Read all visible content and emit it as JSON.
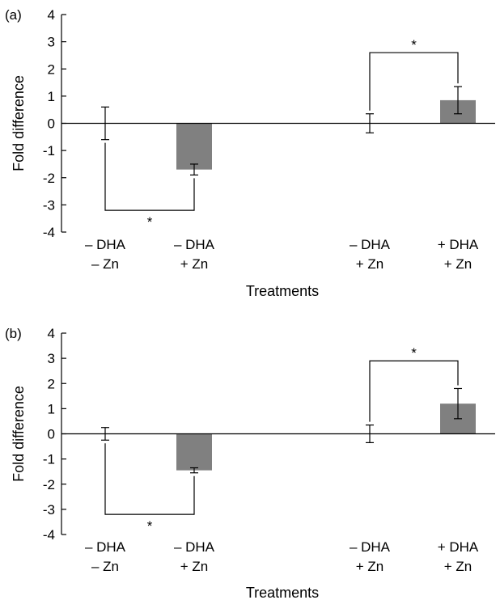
{
  "chart_data": [
    {
      "type": "bar",
      "panel_label": "(a)",
      "xlabel": "Treatments",
      "ylabel": "Fold difference",
      "ylim": [
        -4,
        4
      ],
      "yticks": [
        "4",
        "3",
        "2",
        "1",
        "0",
        "-1",
        "-2",
        "-3",
        "-4"
      ],
      "categories": [
        {
          "line1": "– DHA",
          "line2": "– Zn"
        },
        {
          "line1": "– DHA",
          "line2": "+ Zn"
        },
        {
          "line1": "– DHA",
          "line2": "+ Zn"
        },
        {
          "line1": "+ DHA",
          "line2": "+ Zn"
        }
      ],
      "values": [
        0,
        -1.7,
        0,
        0.85
      ],
      "errors": [
        0.6,
        0.2,
        0.35,
        0.5
      ],
      "bar_color": "#808080",
      "significance": [
        {
          "pair": [
            0,
            1
          ],
          "symbol": "*",
          "side": "below"
        },
        {
          "pair": [
            2,
            3
          ],
          "symbol": "*",
          "side": "above"
        }
      ]
    },
    {
      "type": "bar",
      "panel_label": "(b)",
      "xlabel": "Treatments",
      "ylabel": "Fold difference",
      "ylim": [
        -4,
        4
      ],
      "yticks": [
        "4",
        "3",
        "2",
        "1",
        "0",
        "-1",
        "-2",
        "-3",
        "-4"
      ],
      "categories": [
        {
          "line1": "– DHA",
          "line2": "– Zn"
        },
        {
          "line1": "– DHA",
          "line2": "+ Zn"
        },
        {
          "line1": "– DHA",
          "line2": "+ Zn"
        },
        {
          "line1": "+ DHA",
          "line2": "+ Zn"
        }
      ],
      "values": [
        0,
        -1.45,
        0,
        1.2
      ],
      "errors": [
        0.25,
        0.1,
        0.35,
        0.6
      ],
      "bar_color": "#808080",
      "significance": [
        {
          "pair": [
            0,
            1
          ],
          "symbol": "*",
          "side": "below"
        },
        {
          "pair": [
            2,
            3
          ],
          "symbol": "*",
          "side": "above"
        }
      ]
    }
  ]
}
